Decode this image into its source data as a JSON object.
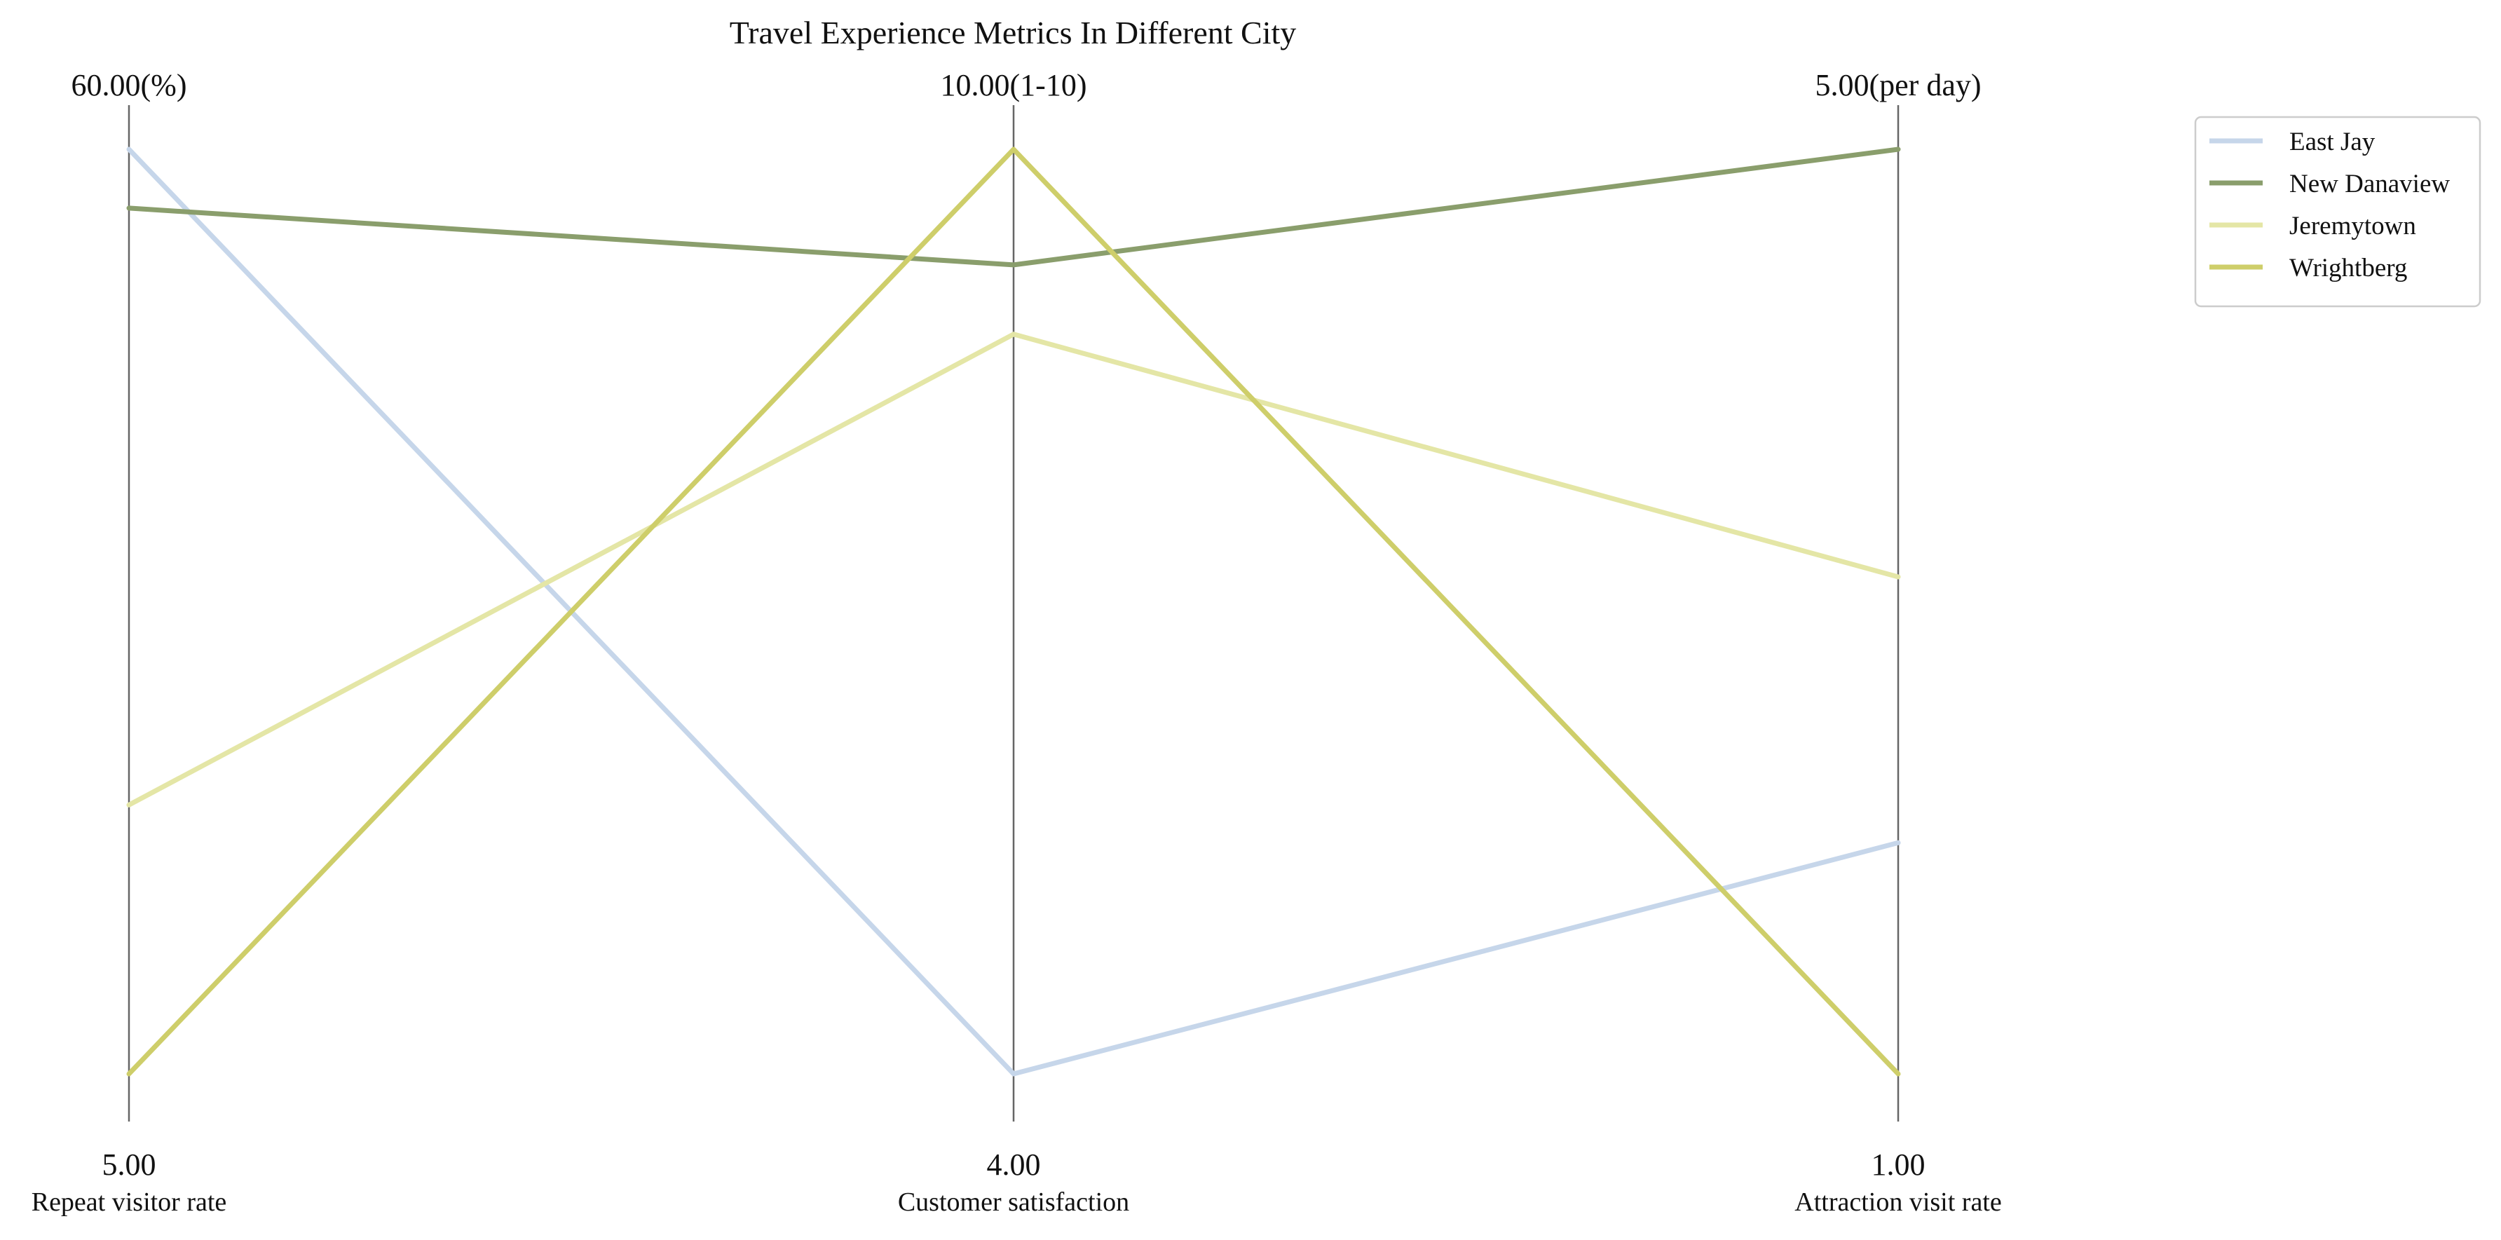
{
  "chart_data": {
    "type": "parallel-coordinates",
    "title": "Travel Experience Metrics In Different City",
    "axes": [
      {
        "name": "Repeat visitor rate",
        "unit": "%",
        "min": 5.0,
        "max": 60.0,
        "min_label": "5.00",
        "max_label": "60.00(%)"
      },
      {
        "name": "Customer satisfaction",
        "unit": "1-10",
        "min": 4.0,
        "max": 10.0,
        "min_label": "4.00",
        "max_label": "10.00(1-10)"
      },
      {
        "name": "Attraction visit rate",
        "unit": "per day",
        "min": 1.0,
        "max": 5.0,
        "min_label": "1.00",
        "max_label": "5.00(per day)"
      }
    ],
    "series": [
      {
        "name": "East Jay",
        "color": "#c6d6ea",
        "values": [
          60.0,
          4.0,
          2.0
        ]
      },
      {
        "name": "New Danaview",
        "color": "#8a9e6c",
        "values": [
          56.5,
          9.25,
          5.0
        ]
      },
      {
        "name": "Jeremytown",
        "color": "#e4e6a6",
        "values": [
          21.0,
          8.8,
          3.15
        ]
      },
      {
        "name": "Wrightberg",
        "color": "#cece6a",
        "values": [
          5.0,
          10.0,
          1.0
        ]
      }
    ],
    "legend": {
      "position": "top-right"
    },
    "grid": false
  }
}
